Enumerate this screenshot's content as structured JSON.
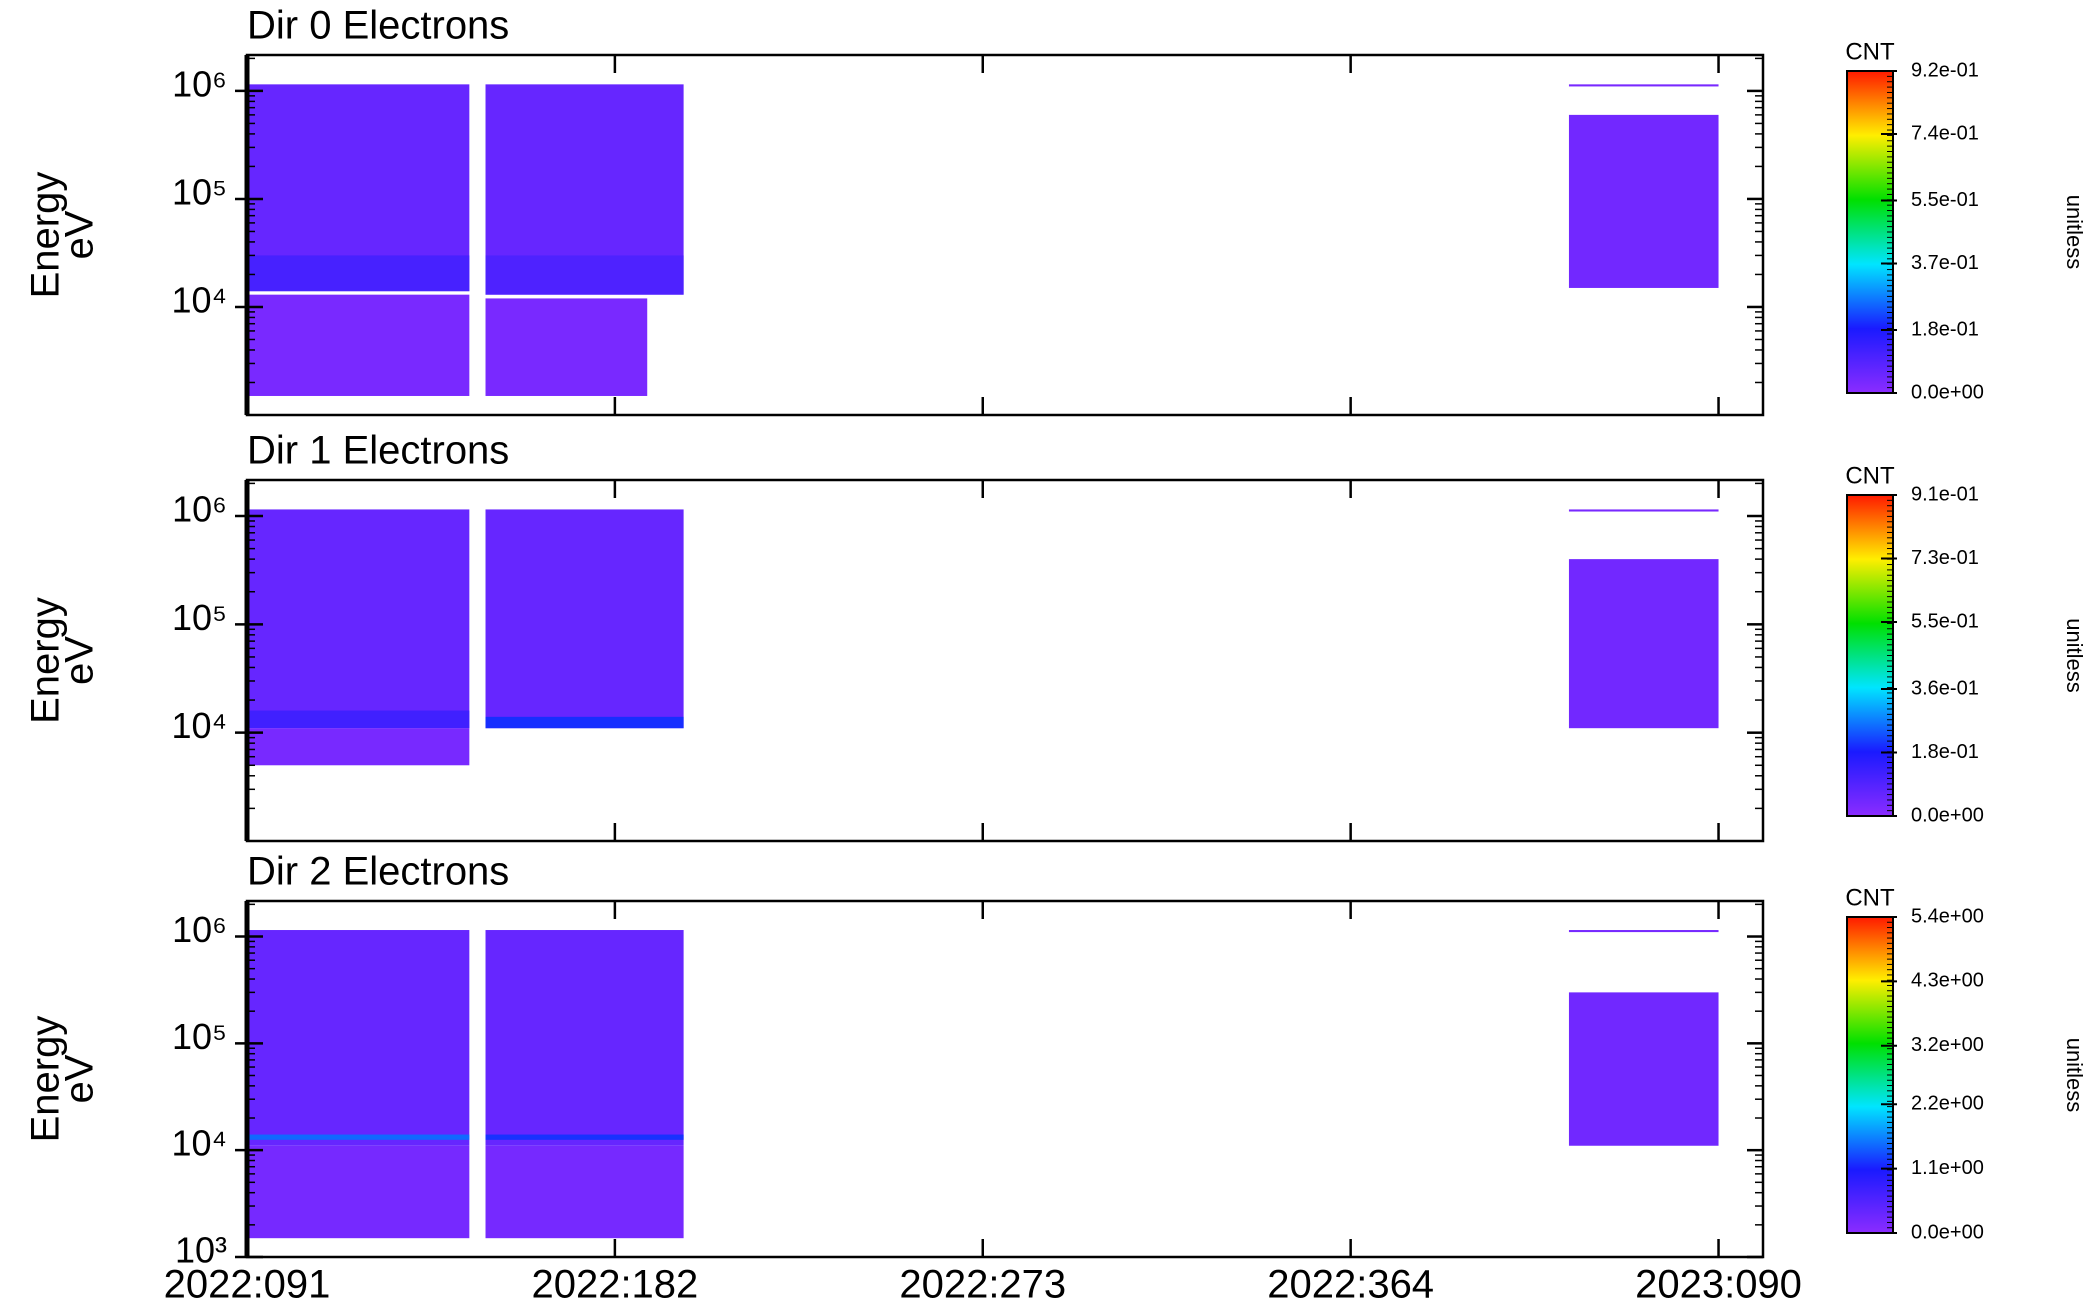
{
  "xaxis": {
    "xlim": [
      91,
      466
    ],
    "xticks": [
      {
        "value": 91,
        "label": "2022:091"
      },
      {
        "value": 182,
        "label": "2022:182"
      },
      {
        "value": 273,
        "label": "2022:273"
      },
      {
        "value": 364,
        "label": "2022:364"
      },
      {
        "value": 455,
        "label": "2023:090"
      }
    ]
  },
  "chart_data": [
    {
      "type": "heatmap",
      "title": "Dir 0 Electrons",
      "ylabel": [
        "Energy",
        "eV"
      ],
      "log_y": true,
      "ylim": [
        1000,
        2150000
      ],
      "yticks": [
        {
          "value": 10000,
          "label": "10⁴"
        },
        {
          "value": 100000,
          "label": "10⁵"
        },
        {
          "value": 1000000,
          "label": "10⁶"
        }
      ],
      "colorbar": {
        "label": "CNT",
        "unit_label": "unitless",
        "lim": [
          0,
          0.92
        ],
        "colormap": [
          "#8b2cff",
          "#1a1aff",
          "#00e5ff",
          "#00e000",
          "#ffee00",
          "#ff1a00"
        ],
        "ticks": [
          {
            "value": 0,
            "label": "0.0e+00"
          },
          {
            "value": 0.18,
            "label": "1.8e-01"
          },
          {
            "value": 0.37,
            "label": "3.7e-01"
          },
          {
            "value": 0.55,
            "label": "5.5e-01"
          },
          {
            "value": 0.74,
            "label": "7.4e-01"
          },
          {
            "value": 0.92,
            "label": "9.2e-01"
          }
        ]
      },
      "cells": [
        {
          "x": [
            91,
            146
          ],
          "y": [
            14000,
            1150000
          ],
          "value": 0.06
        },
        {
          "x": [
            91,
            146
          ],
          "y": [
            14000,
            30000
          ],
          "value": 0.11
        },
        {
          "x": [
            91,
            146
          ],
          "y": [
            1500,
            13000
          ],
          "value": 0.03
        },
        {
          "x": [
            150,
            199
          ],
          "y": [
            13000,
            1150000
          ],
          "value": 0.06
        },
        {
          "x": [
            150,
            199
          ],
          "y": [
            13000,
            30000
          ],
          "value": 0.1
        },
        {
          "x": [
            150,
            190
          ],
          "y": [
            1500,
            12000
          ],
          "value": 0.03
        },
        {
          "x": [
            418,
            455
          ],
          "y": [
            15000,
            600000
          ],
          "value": 0.04
        },
        {
          "x": [
            418,
            455
          ],
          "y": [
            1100000,
            1150000
          ],
          "value": 0.03
        }
      ]
    },
    {
      "type": "heatmap",
      "title": "Dir 1 Electrons",
      "ylabel": [
        "Energy",
        "eV"
      ],
      "log_y": true,
      "ylim": [
        1000,
        2150000
      ],
      "yticks": [
        {
          "value": 10000,
          "label": "10⁴"
        },
        {
          "value": 100000,
          "label": "10⁵"
        },
        {
          "value": 1000000,
          "label": "10⁶"
        }
      ],
      "colorbar": {
        "label": "CNT",
        "unit_label": "unitless",
        "lim": [
          0,
          0.91
        ],
        "colormap": [
          "#8b2cff",
          "#1a1aff",
          "#00e5ff",
          "#00e000",
          "#ffee00",
          "#ff1a00"
        ],
        "ticks": [
          {
            "value": 0,
            "label": "0.0e+00"
          },
          {
            "value": 0.18,
            "label": "1.8e-01"
          },
          {
            "value": 0.36,
            "label": "3.6e-01"
          },
          {
            "value": 0.55,
            "label": "5.5e-01"
          },
          {
            "value": 0.73,
            "label": "7.3e-01"
          },
          {
            "value": 0.91,
            "label": "9.1e-01"
          }
        ]
      },
      "cells": [
        {
          "x": [
            91,
            146
          ],
          "y": [
            11000,
            1150000
          ],
          "value": 0.06
        },
        {
          "x": [
            91,
            146
          ],
          "y": [
            11000,
            16000
          ],
          "value": 0.12
        },
        {
          "x": [
            91,
            146
          ],
          "y": [
            5000,
            11000
          ],
          "value": 0.03
        },
        {
          "x": [
            150,
            199
          ],
          "y": [
            11000,
            1150000
          ],
          "value": 0.06
        },
        {
          "x": [
            150,
            199
          ],
          "y": [
            11000,
            14000
          ],
          "value": 0.2
        },
        {
          "x": [
            418,
            455
          ],
          "y": [
            11000,
            400000
          ],
          "value": 0.04
        },
        {
          "x": [
            418,
            455
          ],
          "y": [
            1100000,
            1150000
          ],
          "value": 0.03
        }
      ]
    },
    {
      "type": "heatmap",
      "title": "Dir 2 Electrons",
      "ylabel": [
        "Energy",
        "eV"
      ],
      "log_y": true,
      "ylim": [
        1000,
        2150000
      ],
      "yticks": [
        1000,
        {
          "value": 10000,
          "label": "10⁴"
        },
        {
          "value": 100000,
          "label": "10⁵"
        },
        {
          "value": 1000000,
          "label": "10⁶"
        }
      ],
      "ytick_first_label": "10³",
      "colorbar": {
        "label": "CNT",
        "unit_label": "unitless",
        "lim": [
          0,
          5.4
        ],
        "colormap": [
          "#8b2cff",
          "#1a1aff",
          "#00e5ff",
          "#00e000",
          "#ffee00",
          "#ff1a00"
        ],
        "ticks": [
          {
            "value": 0,
            "label": "0.0e+00"
          },
          {
            "value": 1.1,
            "label": "1.1e+00"
          },
          {
            "value": 2.2,
            "label": "2.2e+00"
          },
          {
            "value": 3.2,
            "label": "3.2e+00"
          },
          {
            "value": 4.3,
            "label": "4.3e+00"
          },
          {
            "value": 5.4,
            "label": "5.4e+00"
          }
        ]
      },
      "cells": [
        {
          "x": [
            91,
            146
          ],
          "y": [
            11000,
            1150000
          ],
          "value": 0.35
        },
        {
          "x": [
            91,
            146
          ],
          "y": [
            12500,
            14000
          ],
          "value": 1.5
        },
        {
          "x": [
            91,
            146
          ],
          "y": [
            1500,
            11000
          ],
          "value": 0.2
        },
        {
          "x": [
            150,
            199
          ],
          "y": [
            11000,
            1150000
          ],
          "value": 0.35
        },
        {
          "x": [
            150,
            199
          ],
          "y": [
            12500,
            14000
          ],
          "value": 1.2
        },
        {
          "x": [
            150,
            199
          ],
          "y": [
            1500,
            11000
          ],
          "value": 0.2
        },
        {
          "x": [
            418,
            455
          ],
          "y": [
            11000,
            300000
          ],
          "value": 0.25
        },
        {
          "x": [
            418,
            455
          ],
          "y": [
            1100000,
            1150000
          ],
          "value": 0.2
        }
      ]
    }
  ]
}
